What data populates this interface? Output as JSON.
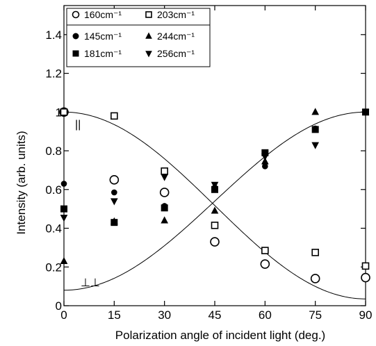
{
  "chart_data": {
    "type": "scatter",
    "xlabel": "Polarization angle of incident light (deg.)",
    "ylabel": "Intensity (arb. units)",
    "xlim": [
      0,
      90
    ],
    "ylim": [
      0,
      1.55
    ],
    "xticks": [
      0,
      15,
      30,
      45,
      60,
      75,
      90
    ],
    "yticks": [
      0,
      0.2,
      0.4,
      0.6,
      0.8,
      1,
      1.2,
      1.4
    ],
    "ytick_labels": [
      "0",
      "0.2",
      "0.4",
      "0.6",
      "0.8",
      "1",
      "1.2",
      "1.4"
    ],
    "legend_placement": "top-left",
    "grid": false,
    "series": [
      {
        "name": "160cm⁻¹",
        "marker": "circle-open",
        "x": [
          0,
          15,
          30,
          45,
          60,
          75,
          90
        ],
        "y": [
          1.0,
          0.65,
          0.585,
          0.33,
          0.215,
          0.14,
          0.145
        ]
      },
      {
        "name": "203cm⁻¹",
        "marker": "square-open",
        "x": [
          0,
          15,
          30,
          45,
          60,
          75,
          90
        ],
        "y": [
          1.0,
          0.98,
          0.695,
          0.415,
          0.285,
          0.275,
          0.205
        ]
      },
      {
        "name": "145cm⁻¹",
        "marker": "circle-filled",
        "x": [
          0,
          15,
          30,
          45,
          60,
          75,
          90
        ],
        "y": [
          0.63,
          0.585,
          0.515,
          0.61,
          0.72,
          0.915,
          1.0
        ]
      },
      {
        "name": "244cm⁻¹",
        "marker": "triangle-up-filled",
        "x": [
          0,
          15,
          30,
          45,
          60,
          75,
          90
        ],
        "y": [
          0.23,
          0.435,
          0.44,
          0.49,
          0.745,
          1.0,
          1.0
        ]
      },
      {
        "name": "181cm⁻¹",
        "marker": "square-filled",
        "x": [
          0,
          15,
          30,
          45,
          60,
          75,
          90
        ],
        "y": [
          0.5,
          0.43,
          0.505,
          0.6,
          0.79,
          0.91,
          1.0
        ]
      },
      {
        "name": "256cm⁻¹",
        "marker": "triangle-down-filled",
        "x": [
          0,
          15,
          30,
          45,
          60,
          75,
          90
        ],
        "y": [
          0.455,
          0.54,
          0.665,
          0.625,
          0.77,
          0.83,
          1.0
        ]
      }
    ],
    "curves": [
      {
        "label": "||",
        "formula": "parallel",
        "ymin": 0.035,
        "ymax": 1.0
      },
      {
        "label": "⊥⊥",
        "formula": "perpendicular",
        "ymin": 0.08,
        "ymax": 1.0
      }
    ]
  }
}
